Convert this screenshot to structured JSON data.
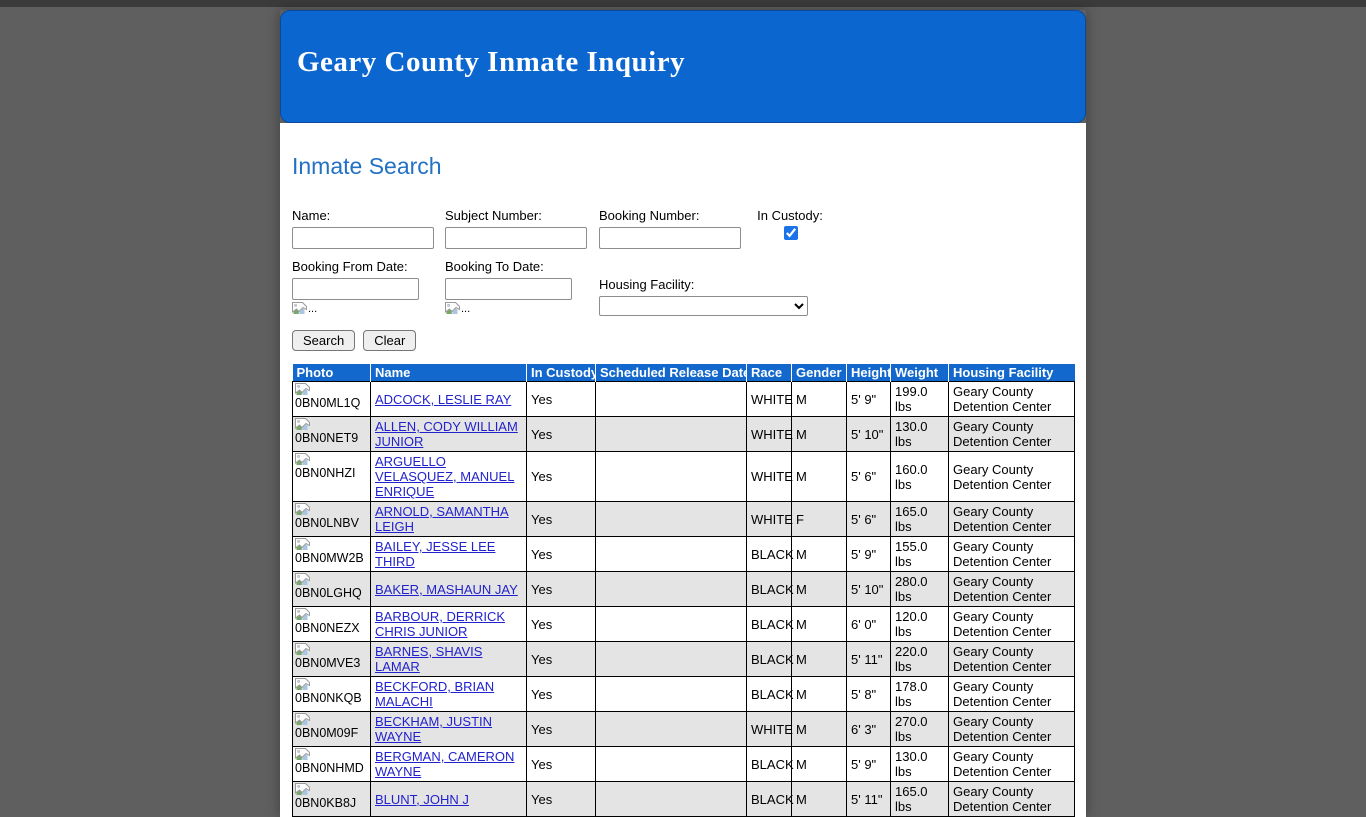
{
  "page": {
    "title": "Geary County Inmate Inquiry",
    "section_title": "Inmate Search"
  },
  "colors": {
    "banner_blue": "#0b67cf",
    "table_header_blue": "#1268cc",
    "link_blue": "#2222cc",
    "section_title_blue": "#2271c4",
    "alt_row_gray": "#e4e4e4",
    "page_background": "#5f5f5f",
    "checkbox_accent": "#1a73e8"
  },
  "form": {
    "name_label": "Name:",
    "name_value": "",
    "subject_number_label": "Subject Number:",
    "subject_number_value": "",
    "booking_number_label": "Booking Number:",
    "booking_number_value": "",
    "in_custody_label": "In Custody:",
    "in_custody_checked": true,
    "booking_from_label": "Booking From Date:",
    "booking_from_value": "",
    "booking_to_label": "Booking To Date:",
    "booking_to_value": "",
    "date_icon_alt": "...",
    "housing_facility_label": "Housing Facility:",
    "housing_facility_value": "",
    "search_button": "Search",
    "clear_button": "Clear"
  },
  "table": {
    "headers": [
      "Photo",
      "Name",
      "In Custody",
      "Scheduled Release Date",
      "Race",
      "Gender",
      "Height",
      "Weight",
      "Housing Facility"
    ],
    "rows": [
      {
        "photo_id": "0BN0ML1Q",
        "name": "ADCOCK, LESLIE RAY",
        "in_custody": "Yes",
        "scheduled_release_date": "",
        "race": "WHITE",
        "gender": "M",
        "height": "5' 9\"",
        "weight": "199.0 lbs",
        "housing_facility": "Geary County Detention Center"
      },
      {
        "photo_id": "0BN0NET9",
        "name": "ALLEN, CODY WILLIAM JUNIOR",
        "in_custody": "Yes",
        "scheduled_release_date": "",
        "race": "WHITE",
        "gender": "M",
        "height": "5' 10\"",
        "weight": "130.0 lbs",
        "housing_facility": "Geary County Detention Center"
      },
      {
        "photo_id": "0BN0NHZI",
        "name": "ARGUELLO VELASQUEZ, MANUEL ENRIQUE",
        "in_custody": "Yes",
        "scheduled_release_date": "",
        "race": "WHITE",
        "gender": "M",
        "height": "5' 6\"",
        "weight": "160.0 lbs",
        "housing_facility": "Geary County Detention Center"
      },
      {
        "photo_id": "0BN0LNBV",
        "name": "ARNOLD, SAMANTHA LEIGH",
        "in_custody": "Yes",
        "scheduled_release_date": "",
        "race": "WHITE",
        "gender": "F",
        "height": "5' 6\"",
        "weight": "165.0 lbs",
        "housing_facility": "Geary County Detention Center"
      },
      {
        "photo_id": "0BN0MW2B",
        "name": "BAILEY, JESSE LEE THIRD",
        "in_custody": "Yes",
        "scheduled_release_date": "",
        "race": "BLACK",
        "gender": "M",
        "height": "5' 9\"",
        "weight": "155.0 lbs",
        "housing_facility": "Geary County Detention Center"
      },
      {
        "photo_id": "0BN0LGHQ",
        "name": "BAKER, MASHAUN JAY",
        "in_custody": "Yes",
        "scheduled_release_date": "",
        "race": "BLACK",
        "gender": "M",
        "height": "5' 10\"",
        "weight": "280.0 lbs",
        "housing_facility": "Geary County Detention Center"
      },
      {
        "photo_id": "0BN0NEZX",
        "name": "BARBOUR, DERRICK CHRIS JUNIOR",
        "in_custody": "Yes",
        "scheduled_release_date": "",
        "race": "BLACK",
        "gender": "M",
        "height": "6' 0\"",
        "weight": "120.0 lbs",
        "housing_facility": "Geary County Detention Center"
      },
      {
        "photo_id": "0BN0MVE3",
        "name": "BARNES, SHAVIS LAMAR",
        "in_custody": "Yes",
        "scheduled_release_date": "",
        "race": "BLACK",
        "gender": "M",
        "height": "5' 11\"",
        "weight": "220.0 lbs",
        "housing_facility": "Geary County Detention Center"
      },
      {
        "photo_id": "0BN0NKQB",
        "name": "BECKFORD, BRIAN MALACHI",
        "in_custody": "Yes",
        "scheduled_release_date": "",
        "race": "BLACK",
        "gender": "M",
        "height": "5' 8\"",
        "weight": "178.0 lbs",
        "housing_facility": "Geary County Detention Center"
      },
      {
        "photo_id": "0BN0M09F",
        "name": "BECKHAM, JUSTIN WAYNE",
        "in_custody": "Yes",
        "scheduled_release_date": "",
        "race": "WHITE",
        "gender": "M",
        "height": "6' 3\"",
        "weight": "270.0 lbs",
        "housing_facility": "Geary County Detention Center"
      },
      {
        "photo_id": "0BN0NHMD",
        "name": "BERGMAN, CAMERON WAYNE",
        "in_custody": "Yes",
        "scheduled_release_date": "",
        "race": "BLACK",
        "gender": "M",
        "height": "5' 9\"",
        "weight": "130.0 lbs",
        "housing_facility": "Geary County Detention Center"
      },
      {
        "photo_id": "0BN0KB8J",
        "name": "BLUNT, JOHN J",
        "in_custody": "Yes",
        "scheduled_release_date": "",
        "race": "BLACK",
        "gender": "M",
        "height": "5' 11\"",
        "weight": "165.0 lbs",
        "housing_facility": "Geary County Detention Center"
      }
    ]
  }
}
